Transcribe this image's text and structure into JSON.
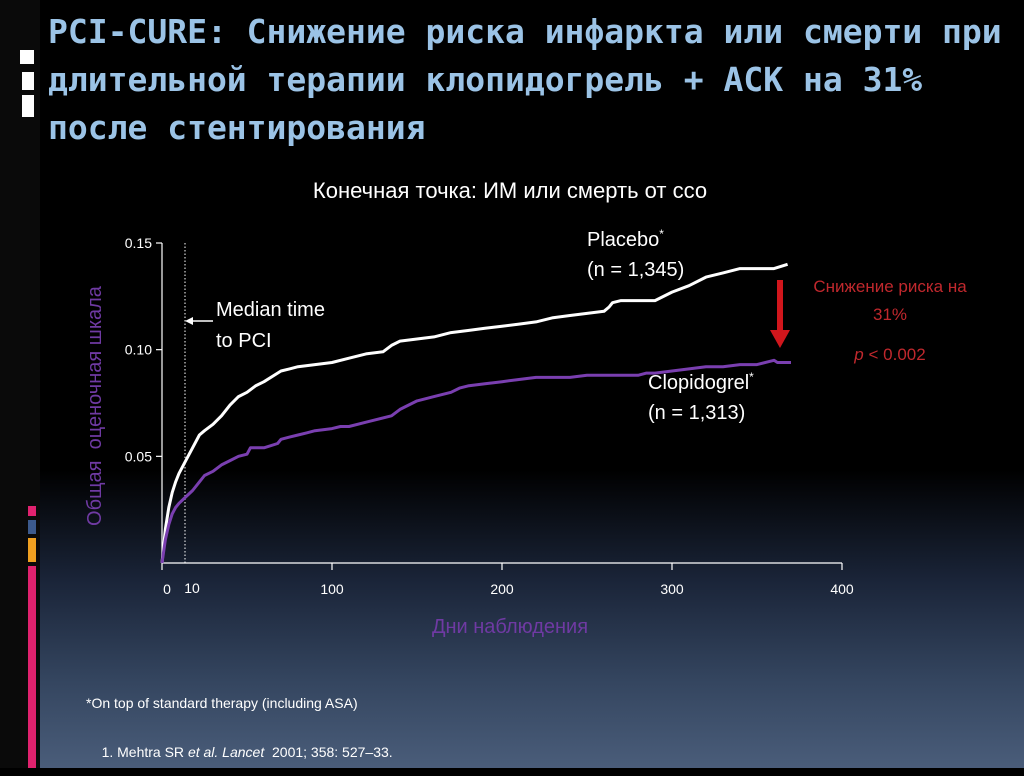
{
  "slide": {
    "title": "PCI-CURE: Снижение риска  инфаркта или смерти при длительной терапии клопидогрель + АСК на 31% после стентирования",
    "footnote_asterisk": "*On top of standard therapy (including ASA)",
    "reference": {
      "prefix": "1. Mehtra SR ",
      "italic": "et al. Lancet",
      "suffix": "  2001; 358: 527–33."
    }
  },
  "colors": {
    "title": "#9bc3e6",
    "placebo": "#ffffff",
    "clopidogrel": "#7a3fb0",
    "axis_label": "#6f3aa3",
    "risk_text": "#c0282d",
    "arrow": "#d0161c",
    "deco_pink": "#e0226e",
    "deco_blue": "#3c5a8c",
    "deco_orange": "#f0a020"
  },
  "chart_data": {
    "type": "line",
    "title": "Конечная точка: ИМ или смерть от ссо",
    "xlabel": "Дни наблюдения",
    "ylabel": "Общая  оценочная шкала",
    "xlim": [
      0,
      400
    ],
    "ylim": [
      0,
      0.15
    ],
    "xticks": [
      0,
      100,
      200,
      300,
      400
    ],
    "xtick_labels": [
      "0",
      "100",
      "200",
      "300",
      "400"
    ],
    "yticks": [
      0.05,
      0.1,
      0.15
    ],
    "ytick_labels": [
      "0.05",
      "0.10",
      "0.15"
    ],
    "grid": false,
    "series": [
      {
        "name": "Placebo",
        "n_label": "(n = 1,345)",
        "color": "#ffffff",
        "x": [
          0,
          1,
          2,
          4,
          6,
          8,
          10,
          14,
          18,
          22,
          25,
          30,
          35,
          40,
          45,
          50,
          55,
          60,
          70,
          75,
          80,
          90,
          100,
          110,
          120,
          130,
          135,
          140,
          150,
          160,
          170,
          180,
          190,
          200,
          210,
          220,
          230,
          240,
          250,
          260,
          263,
          265,
          270,
          280,
          290,
          300,
          310,
          320,
          330,
          340,
          350,
          360,
          368
        ],
        "y": [
          0.0,
          0.008,
          0.016,
          0.026,
          0.033,
          0.038,
          0.042,
          0.048,
          0.054,
          0.06,
          0.062,
          0.065,
          0.069,
          0.074,
          0.078,
          0.08,
          0.083,
          0.085,
          0.09,
          0.091,
          0.092,
          0.093,
          0.094,
          0.096,
          0.098,
          0.099,
          0.102,
          0.104,
          0.105,
          0.106,
          0.108,
          0.109,
          0.11,
          0.111,
          0.112,
          0.113,
          0.115,
          0.116,
          0.117,
          0.118,
          0.12,
          0.122,
          0.123,
          0.123,
          0.123,
          0.127,
          0.13,
          0.134,
          0.136,
          0.138,
          0.138,
          0.138,
          0.14
        ]
      },
      {
        "name": "Clopidogrel",
        "n_label": "(n = 1,313)",
        "color": "#7a3fb0",
        "x": [
          0,
          2,
          4,
          6,
          8,
          10,
          14,
          18,
          22,
          25,
          30,
          35,
          40,
          45,
          50,
          52,
          55,
          60,
          68,
          70,
          75,
          80,
          85,
          90,
          100,
          105,
          110,
          120,
          125,
          135,
          140,
          145,
          150,
          160,
          170,
          175,
          180,
          190,
          200,
          210,
          220,
          230,
          240,
          250,
          260,
          270,
          280,
          285,
          290,
          300,
          310,
          320,
          330,
          340,
          350,
          360,
          362,
          370
        ],
        "y": [
          0.0,
          0.011,
          0.018,
          0.023,
          0.026,
          0.028,
          0.031,
          0.034,
          0.038,
          0.041,
          0.043,
          0.046,
          0.048,
          0.05,
          0.051,
          0.054,
          0.054,
          0.054,
          0.056,
          0.058,
          0.059,
          0.06,
          0.061,
          0.062,
          0.063,
          0.064,
          0.064,
          0.066,
          0.067,
          0.069,
          0.072,
          0.074,
          0.076,
          0.078,
          0.08,
          0.082,
          0.083,
          0.084,
          0.085,
          0.086,
          0.087,
          0.087,
          0.087,
          0.088,
          0.088,
          0.088,
          0.088,
          0.089,
          0.089,
          0.09,
          0.091,
          0.092,
          0.092,
          0.093,
          0.093,
          0.095,
          0.094,
          0.094
        ]
      }
    ],
    "annotations": {
      "placebo_label": "Placebo",
      "placebo_n": "(n = 1,345)",
      "clopidogrel_label": "Clopidogrel",
      "clopidogrel_n": "(n = 1,313)",
      "asterisk": "*",
      "median_line_day": 10,
      "median_day_label": "10",
      "median_text_line1": "Median time",
      "median_text_line2": "to PCI",
      "risk_reduction_line1": "Снижение риска на",
      "risk_reduction_line2": "31%",
      "p_value_italic": "p",
      "p_value_rest": " < 0.002"
    }
  }
}
